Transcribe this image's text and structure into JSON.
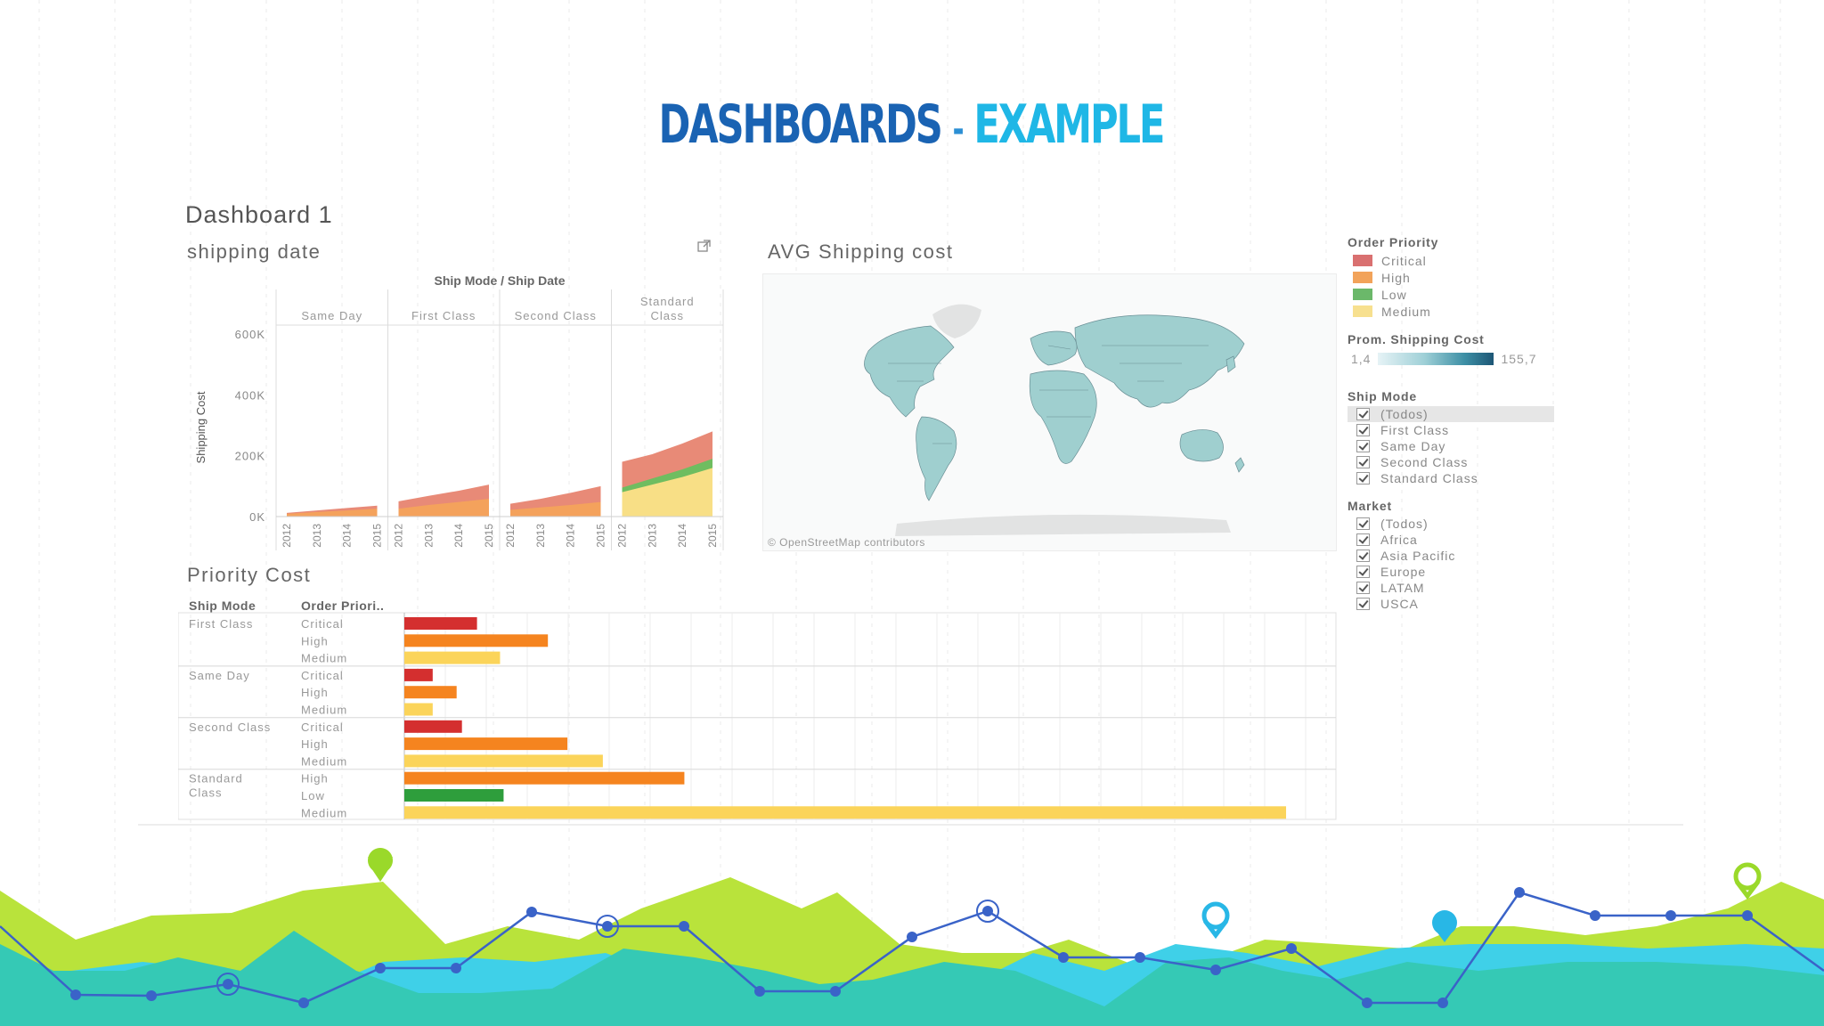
{
  "slide": {
    "title_main": "DASHBOARDS",
    "title_dash": "-",
    "title_accent": "EXAMPLE"
  },
  "dashboard": {
    "title": "Dashboard 1"
  },
  "shipping_date": {
    "title": "shipping date",
    "header": "Ship Mode / Ship Date",
    "panels": [
      {
        "label": "Same Day",
        "crit": [
          12000,
          20000,
          28000,
          36000
        ],
        "high": [
          9000,
          15000,
          20000,
          26000
        ]
      },
      {
        "label": "First Class",
        "crit": [
          50000,
          68000,
          85000,
          105000
        ],
        "high": [
          26000,
          38000,
          48000,
          58000
        ]
      },
      {
        "label": "Second Class",
        "crit": [
          42000,
          58000,
          78000,
          100000
        ],
        "high": [
          22000,
          30000,
          38000,
          48000
        ]
      },
      {
        "label": "Standard Class",
        "crit": [
          180000,
          205000,
          240000,
          280000
        ],
        "medium": [
          80000,
          105000,
          130000,
          160000
        ],
        "low": [
          15000,
          20000,
          25000,
          30000
        ]
      }
    ],
    "years": [
      "2012",
      "2013",
      "2014",
      "2015"
    ],
    "y_ticks": [
      "600K",
      "400K",
      "200K",
      "0K"
    ],
    "ylabel": "Shipping Cost",
    "colors": {
      "critical": "#e88a77",
      "high": "#f4a25c",
      "low": "#6fbd60",
      "medium": "#f8df86"
    }
  },
  "map": {
    "title": "AVG Shipping cost",
    "credit": "© OpenStreetMap contributors"
  },
  "legend": {
    "order_priority_title": "Order Priority",
    "order_priority": [
      {
        "label": "Critical",
        "color": "#d97070"
      },
      {
        "label": "High",
        "color": "#f2a35a"
      },
      {
        "label": "Low",
        "color": "#6bb86a"
      },
      {
        "label": "Medium",
        "color": "#f7e08f"
      }
    ],
    "shipping_cost_title": "Prom. Shipping Cost",
    "shipping_cost_min": "1,4",
    "shipping_cost_max": "155,7",
    "ship_mode_title": "Ship Mode",
    "ship_mode": [
      "(Todos)",
      "First Class",
      "Same Day",
      "Second Class",
      "Standard Class"
    ],
    "market_title": "Market",
    "market": [
      "(Todos)",
      "Africa",
      "Asia Pacific",
      "Europe",
      "LATAM",
      "USCA"
    ]
  },
  "priority_cost": {
    "title": "Priority Cost",
    "col_ship_mode": "Ship Mode",
    "col_order_priority": "Order Priori..",
    "groups": [
      {
        "mode": "First Class",
        "rows": [
          {
            "priority": "Critical",
            "value": 82
          },
          {
            "priority": "High",
            "value": 162
          },
          {
            "priority": "Medium",
            "value": 108
          }
        ]
      },
      {
        "mode": "Same Day",
        "rows": [
          {
            "priority": "Critical",
            "value": 32
          },
          {
            "priority": "High",
            "value": 59
          },
          {
            "priority": "Medium",
            "value": 32
          }
        ]
      },
      {
        "mode": "Second Class",
        "rows": [
          {
            "priority": "Critical",
            "value": 65
          },
          {
            "priority": "High",
            "value": 184
          },
          {
            "priority": "Medium",
            "value": 224
          }
        ]
      },
      {
        "mode": "Standard Class",
        "rows": [
          {
            "priority": "High",
            "value": 316
          },
          {
            "priority": "Low",
            "value": 112
          },
          {
            "priority": "Medium",
            "value": 995
          }
        ]
      }
    ],
    "colors": {
      "Critical": "#d42f2f",
      "High": "#f5841f",
      "Medium": "#fbd45a",
      "Low": "#2e9e3c"
    }
  }
}
